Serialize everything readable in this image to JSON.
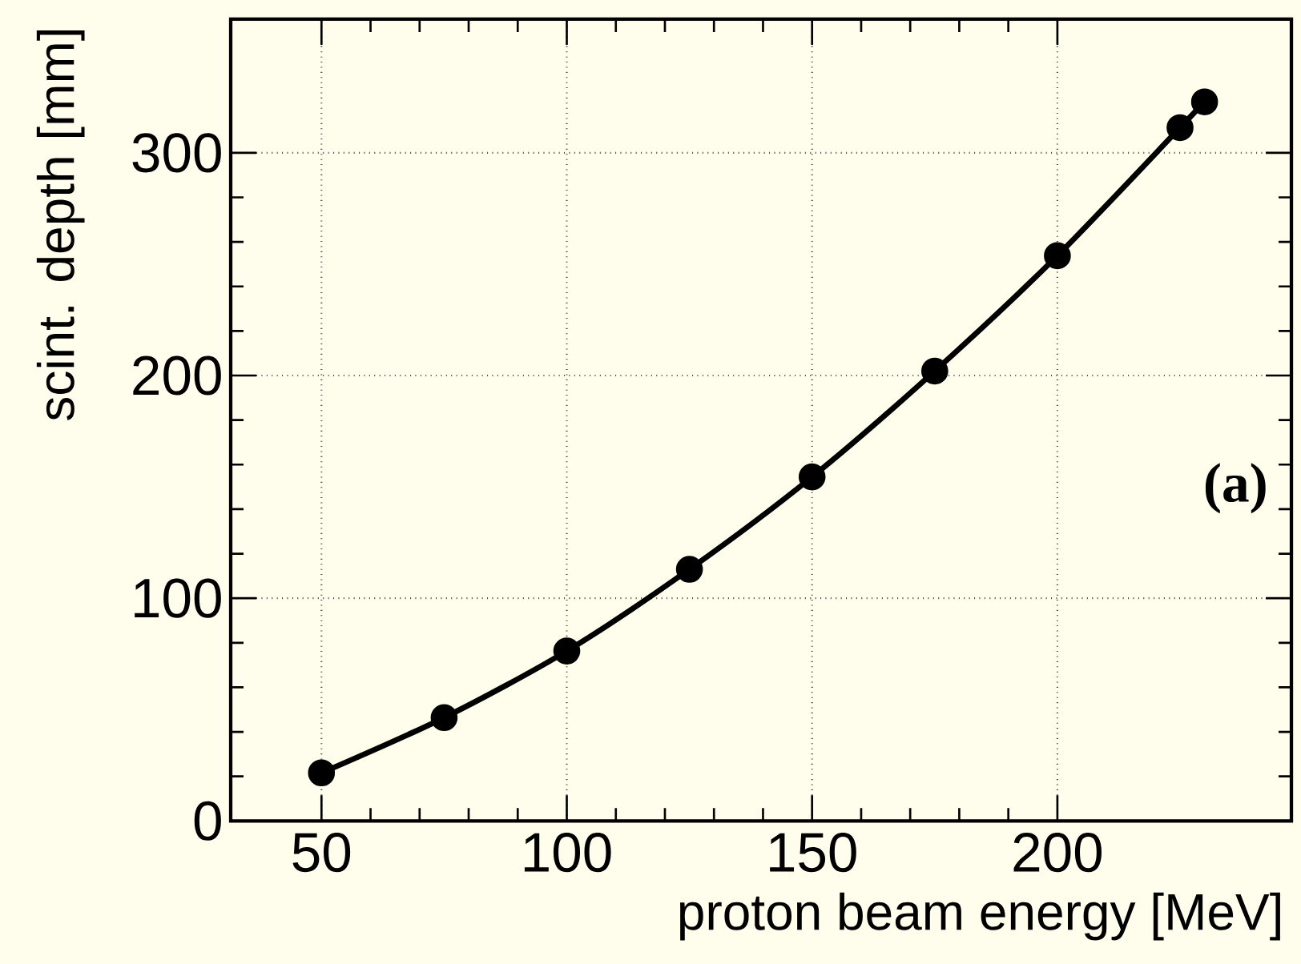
{
  "chart_data": {
    "type": "line",
    "xlabel": "proton beam energy  [MeV]",
    "ylabel": "scint. depth  [mm]",
    "annotations": [
      "(a)"
    ],
    "x": [
      50,
      75,
      100,
      125,
      150,
      175,
      200,
      225,
      230
    ],
    "series": [
      {
        "color": "#000000",
        "values": [
          21.6,
          46.4,
          76.3,
          113,
          154.5,
          202,
          253.8,
          311.3,
          322.9
        ]
      }
    ],
    "xlim": [
      31.5,
      247.7
    ],
    "ylim": [
      0,
      360
    ],
    "xticks": [
      50,
      100,
      150,
      200
    ],
    "yticks": [
      0,
      100,
      200,
      300
    ],
    "grid": true,
    "marker": "circle",
    "line_style": "solid"
  }
}
